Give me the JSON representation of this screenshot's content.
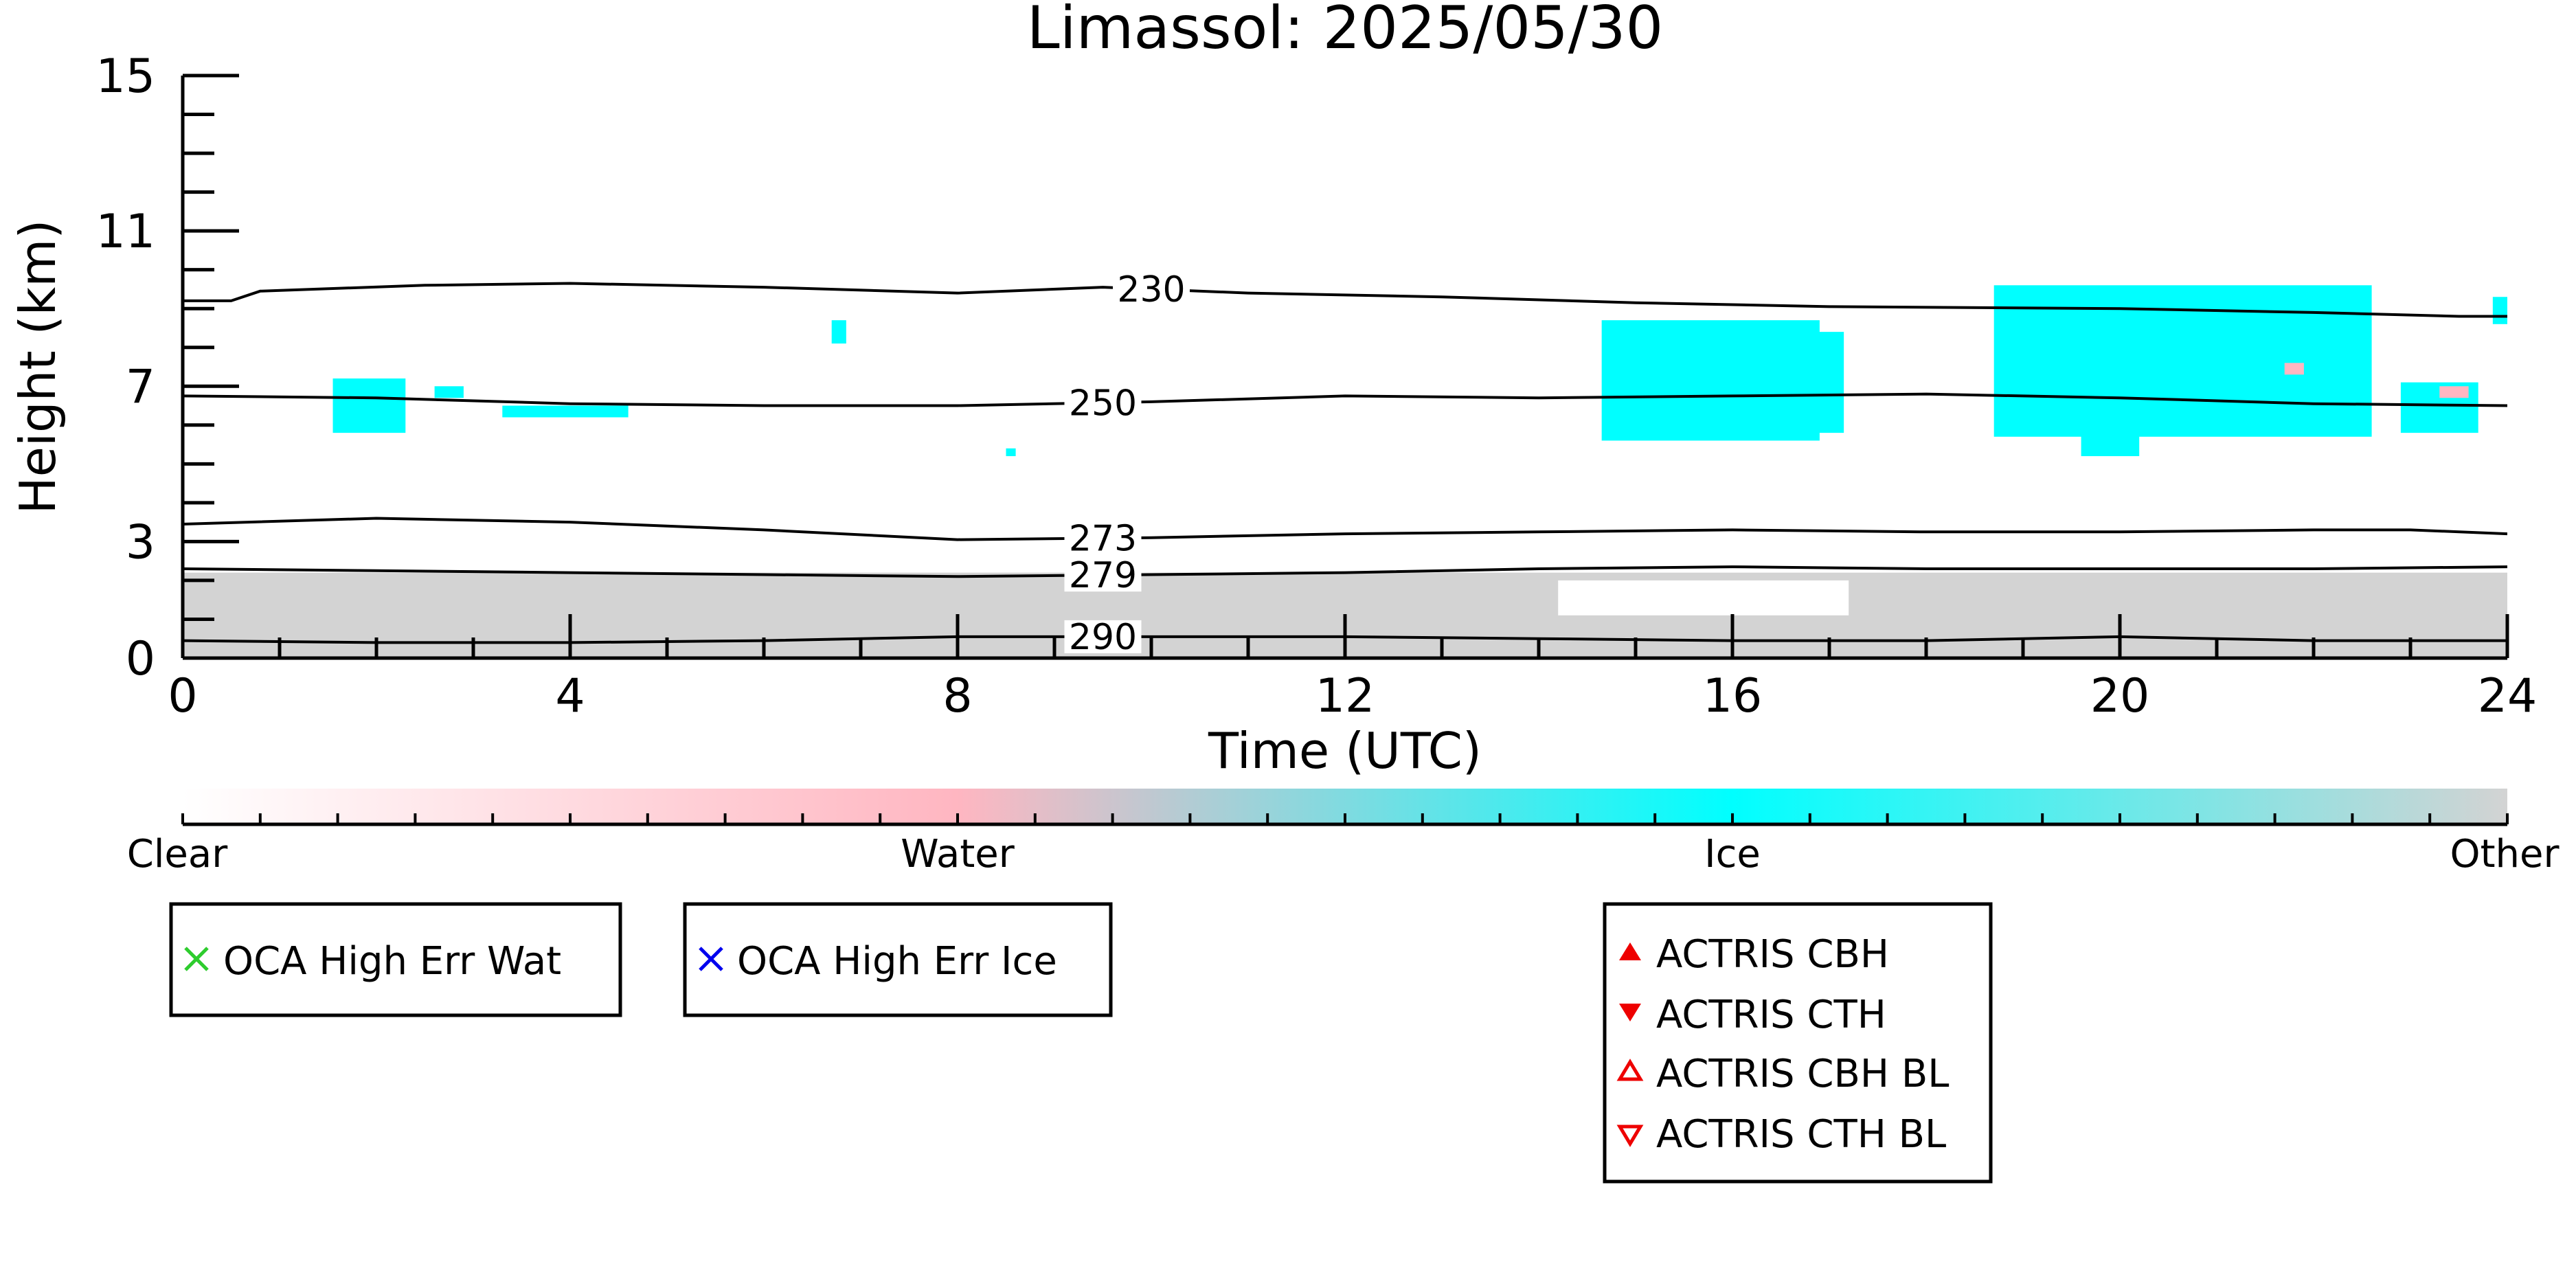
{
  "chart_data": {
    "type": "heatmap",
    "title": "Limassol: 2025/05/30",
    "xlabel": "Time (UTC)",
    "ylabel": "Height (km)",
    "xlim": [
      0,
      24
    ],
    "ylim": [
      0,
      15
    ],
    "xticks": [
      0,
      4,
      8,
      12,
      16,
      20,
      24
    ],
    "yticks": [
      0,
      3,
      7,
      11,
      15
    ],
    "xtick_labels": [
      "0",
      "4",
      "8",
      "12",
      "16",
      "20",
      "24"
    ],
    "ytick_labels": [
      "0",
      "3",
      "7",
      "11",
      "15"
    ],
    "colorbar": {
      "labels": [
        "Clear",
        "Water",
        "Ice",
        "Other"
      ],
      "colors": {
        "Clear": "#ffffff",
        "Water": "#ffb6c1",
        "Ice": "#00ffff",
        "Other": "#d3d3d3"
      }
    },
    "isotherms": [
      {
        "label": "230",
        "label_x": 10.0,
        "points": [
          [
            0,
            9.2
          ],
          [
            0.5,
            9.2
          ],
          [
            0.8,
            9.45
          ],
          [
            2.5,
            9.6
          ],
          [
            4,
            9.65
          ],
          [
            6,
            9.55
          ],
          [
            8,
            9.4
          ],
          [
            9.5,
            9.55
          ],
          [
            11,
            9.4
          ],
          [
            13,
            9.3
          ],
          [
            15,
            9.15
          ],
          [
            17,
            9.05
          ],
          [
            20,
            9.0
          ],
          [
            22,
            8.9
          ],
          [
            23.5,
            8.8
          ],
          [
            24,
            8.8
          ]
        ]
      },
      {
        "label": "250",
        "label_x": 9.5,
        "points": [
          [
            0,
            6.75
          ],
          [
            2,
            6.7
          ],
          [
            4,
            6.55
          ],
          [
            6,
            6.5
          ],
          [
            8,
            6.5
          ],
          [
            10,
            6.6
          ],
          [
            12,
            6.75
          ],
          [
            14,
            6.7
          ],
          [
            16,
            6.75
          ],
          [
            18,
            6.8
          ],
          [
            20,
            6.7
          ],
          [
            22,
            6.55
          ],
          [
            24,
            6.5
          ]
        ]
      },
      {
        "label": "273",
        "label_x": 9.5,
        "points": [
          [
            0,
            3.45
          ],
          [
            2,
            3.6
          ],
          [
            4,
            3.5
          ],
          [
            6,
            3.3
          ],
          [
            8,
            3.05
          ],
          [
            10,
            3.1
          ],
          [
            12,
            3.2
          ],
          [
            14,
            3.25
          ],
          [
            16,
            3.3
          ],
          [
            18,
            3.25
          ],
          [
            20,
            3.25
          ],
          [
            22,
            3.3
          ],
          [
            23,
            3.3
          ],
          [
            24,
            3.2
          ]
        ]
      },
      {
        "label": "279",
        "label_x": 9.5,
        "points": [
          [
            0,
            2.3
          ],
          [
            2,
            2.25
          ],
          [
            4,
            2.2
          ],
          [
            6,
            2.15
          ],
          [
            8,
            2.1
          ],
          [
            10,
            2.15
          ],
          [
            12,
            2.2
          ],
          [
            14,
            2.3
          ],
          [
            16,
            2.35
          ],
          [
            18,
            2.3
          ],
          [
            20,
            2.3
          ],
          [
            22,
            2.3
          ],
          [
            24,
            2.35
          ]
        ]
      },
      {
        "label": "290",
        "label_x": 9.5,
        "points": [
          [
            0,
            0.45
          ],
          [
            2,
            0.4
          ],
          [
            4,
            0.4
          ],
          [
            6,
            0.45
          ],
          [
            8,
            0.55
          ],
          [
            10,
            0.55
          ],
          [
            12,
            0.55
          ],
          [
            14,
            0.5
          ],
          [
            16,
            0.45
          ],
          [
            18,
            0.45
          ],
          [
            20,
            0.55
          ],
          [
            22,
            0.45
          ],
          [
            24,
            0.45
          ]
        ]
      }
    ],
    "regions": [
      {
        "class": "Other",
        "t": [
          0,
          24
        ],
        "h": [
          0,
          2.2
        ]
      },
      {
        "class": "Clear",
        "t": [
          14.2,
          17.2
        ],
        "h": [
          1.1,
          2.0
        ]
      },
      {
        "class": "Ice",
        "t": [
          1.55,
          2.3
        ],
        "h": [
          5.8,
          7.2
        ]
      },
      {
        "class": "Ice",
        "t": [
          2.6,
          2.9
        ],
        "h": [
          6.7,
          7.0
        ]
      },
      {
        "class": "Ice",
        "t": [
          3.3,
          4.6
        ],
        "h": [
          6.2,
          6.5
        ]
      },
      {
        "class": "Ice",
        "t": [
          6.7,
          6.85
        ],
        "h": [
          8.1,
          8.7
        ]
      },
      {
        "class": "Ice",
        "t": [
          8.5,
          8.6
        ],
        "h": [
          5.2,
          5.4
        ]
      },
      {
        "class": "Ice",
        "t": [
          14.65,
          16.9
        ],
        "h": [
          5.6,
          8.7
        ]
      },
      {
        "class": "Ice",
        "t": [
          16.8,
          17.15
        ],
        "h": [
          5.8,
          8.4
        ]
      },
      {
        "class": "Ice",
        "t": [
          18.7,
          22.6
        ],
        "h": [
          5.7,
          9.6
        ]
      },
      {
        "class": "Ice",
        "t": [
          19.6,
          20.2
        ],
        "h": [
          5.2,
          6.5
        ]
      },
      {
        "class": "Ice",
        "t": [
          22.9,
          23.7
        ],
        "h": [
          5.8,
          7.1
        ]
      },
      {
        "class": "Ice",
        "t": [
          23.85,
          24
        ],
        "h": [
          8.6,
          9.3
        ]
      },
      {
        "class": "Water",
        "t": [
          21.7,
          21.9
        ],
        "h": [
          7.3,
          7.6
        ]
      },
      {
        "class": "Water",
        "t": [
          23.3,
          23.6
        ],
        "h": [
          6.7,
          7.0
        ]
      }
    ],
    "legends": [
      {
        "label": "OCA High Err Wat",
        "marker": "x",
        "color": "#2ecc2e"
      },
      {
        "label": "OCA High Err Ice",
        "marker": "x",
        "color": "#0000ee"
      },
      {
        "label": "ACTRIS CBH",
        "marker": "triangle-up-filled",
        "color": "#ee0000"
      },
      {
        "label": "ACTRIS CTH",
        "marker": "triangle-down-filled",
        "color": "#ee0000"
      },
      {
        "label": "ACTRIS CBH BL",
        "marker": "triangle-up-open",
        "color": "#ee0000"
      },
      {
        "label": "ACTRIS CTH BL",
        "marker": "triangle-down-open",
        "color": "#ee0000"
      }
    ]
  }
}
